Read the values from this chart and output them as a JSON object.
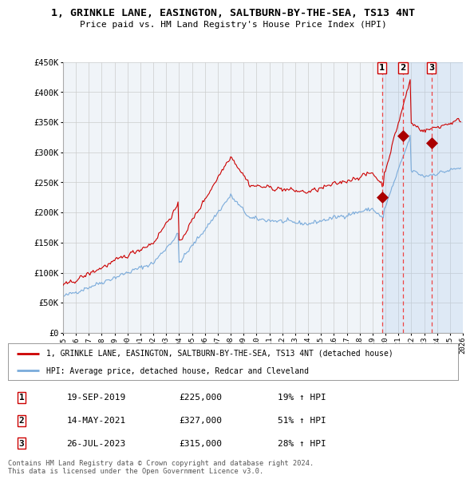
{
  "title": "1, GRINKLE LANE, EASINGTON, SALTBURN-BY-THE-SEA, TS13 4NT",
  "subtitle": "Price paid vs. HM Land Registry's House Price Index (HPI)",
  "ylabel_ticks": [
    "£0",
    "£50K",
    "£100K",
    "£150K",
    "£200K",
    "£250K",
    "£300K",
    "£350K",
    "£400K",
    "£450K"
  ],
  "ytick_values": [
    0,
    50000,
    100000,
    150000,
    200000,
    250000,
    300000,
    350000,
    400000,
    450000
  ],
  "xlim": [
    1995,
    2026
  ],
  "ylim": [
    0,
    450000
  ],
  "hpi_color": "#7aabdb",
  "price_color": "#cc0000",
  "transaction_color": "#aa0000",
  "grid_color": "#cccccc",
  "background_color": "#ffffff",
  "plot_bg_color": "#f0f4f8",
  "shade_color": "#ddeeff",
  "legend_label_price": "1, GRINKLE LANE, EASINGTON, SALTBURN-BY-THE-SEA, TS13 4NT (detached house)",
  "legend_label_hpi": "HPI: Average price, detached house, Redcar and Cleveland",
  "transactions": [
    {
      "label": "1",
      "date_x": 2019.72,
      "price": 225000
    },
    {
      "label": "2",
      "date_x": 2021.36,
      "price": 327000
    },
    {
      "label": "3",
      "date_x": 2023.56,
      "price": 315000
    }
  ],
  "transaction_table": [
    {
      "num": "1",
      "date": "19-SEP-2019",
      "price": "£225,000",
      "change": "19% ↑ HPI"
    },
    {
      "num": "2",
      "date": "14-MAY-2021",
      "price": "£327,000",
      "change": "51% ↑ HPI"
    },
    {
      "num": "3",
      "date": "26-JUL-2023",
      "price": "£315,000",
      "change": "28% ↑ HPI"
    }
  ],
  "footer": "Contains HM Land Registry data © Crown copyright and database right 2024.\nThis data is licensed under the Open Government Licence v3.0."
}
